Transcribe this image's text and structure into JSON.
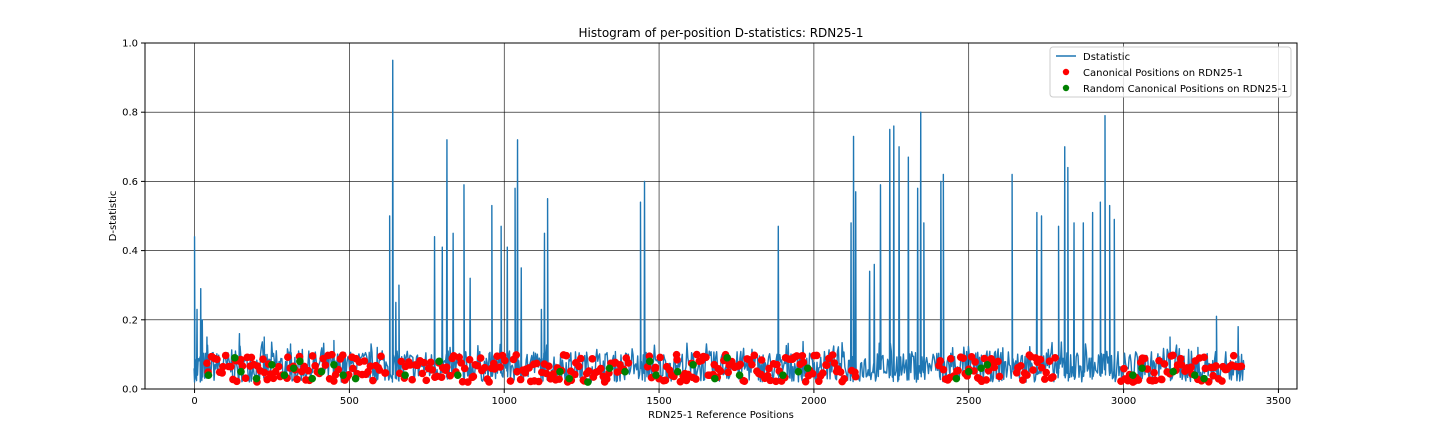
{
  "chart_data": {
    "type": "line",
    "title": "Histogram of per-position D-statistics: RDN25-1",
    "xlabel": "RDN25-1 Reference Positions",
    "ylabel": "D-statistic",
    "xlim": [
      -160,
      3560
    ],
    "ylim": [
      0,
      1.0
    ],
    "xticks": [
      0,
      500,
      1000,
      1500,
      2000,
      2500,
      3000,
      3500
    ],
    "yticks": [
      0.0,
      0.2,
      0.4,
      0.6,
      0.8,
      1.0
    ],
    "xtick_labels": [
      "0",
      "500",
      "1000",
      "1500",
      "2000",
      "2500",
      "3000",
      "3500"
    ],
    "ytick_labels": [
      "0.0",
      "0.2",
      "0.4",
      "0.6",
      "0.8",
      "1.0"
    ],
    "grid": true,
    "legend_position": "top-right",
    "line_color": "#1f77b4",
    "canonical_color": "#ff0000",
    "random_color": "#008000",
    "series": [
      {
        "name": "Dstatistic",
        "kind": "line",
        "x_start": 0,
        "x_end": 3390,
        "baseline_range": [
          0.02,
          0.11
        ],
        "peaks": [
          [
            0,
            0.44
          ],
          [
            8,
            0.23
          ],
          [
            20,
            0.29
          ],
          [
            25,
            0.2
          ],
          [
            40,
            0.15
          ],
          [
            145,
            0.16
          ],
          [
            225,
            0.15
          ],
          [
            310,
            0.13
          ],
          [
            450,
            0.14
          ],
          [
            590,
            0.12
          ],
          [
            630,
            0.5
          ],
          [
            640,
            0.95
          ],
          [
            650,
            0.25
          ],
          [
            660,
            0.3
          ],
          [
            775,
            0.44
          ],
          [
            800,
            0.41
          ],
          [
            815,
            0.72
          ],
          [
            835,
            0.45
          ],
          [
            870,
            0.59
          ],
          [
            890,
            0.32
          ],
          [
            960,
            0.53
          ],
          [
            990,
            0.47
          ],
          [
            1010,
            0.41
          ],
          [
            1035,
            0.58
          ],
          [
            1043,
            0.72
          ],
          [
            1055,
            0.35
          ],
          [
            1120,
            0.23
          ],
          [
            1130,
            0.45
          ],
          [
            1140,
            0.55
          ],
          [
            1440,
            0.54
          ],
          [
            1453,
            0.6
          ],
          [
            1885,
            0.47
          ],
          [
            2120,
            0.48
          ],
          [
            2128,
            0.73
          ],
          [
            2135,
            0.57
          ],
          [
            2180,
            0.34
          ],
          [
            2195,
            0.36
          ],
          [
            2215,
            0.59
          ],
          [
            2245,
            0.75
          ],
          [
            2258,
            0.76
          ],
          [
            2275,
            0.7
          ],
          [
            2305,
            0.67
          ],
          [
            2335,
            0.58
          ],
          [
            2345,
            0.8
          ],
          [
            2355,
            0.48
          ],
          [
            2410,
            0.6
          ],
          [
            2418,
            0.62
          ],
          [
            2640,
            0.62
          ],
          [
            2720,
            0.51
          ],
          [
            2735,
            0.5
          ],
          [
            2790,
            0.47
          ],
          [
            2810,
            0.7
          ],
          [
            2820,
            0.64
          ],
          [
            2840,
            0.48
          ],
          [
            2870,
            0.48
          ],
          [
            2900,
            0.51
          ],
          [
            2925,
            0.54
          ],
          [
            2940,
            0.79
          ],
          [
            2955,
            0.53
          ],
          [
            2970,
            0.49
          ],
          [
            3150,
            0.15
          ],
          [
            3240,
            0.12
          ],
          [
            3300,
            0.21
          ],
          [
            3370,
            0.18
          ]
        ]
      },
      {
        "name": "Canonical Positions on RDN25-1",
        "kind": "scatter",
        "x_ranges": [
          [
            35,
            620
          ],
          [
            660,
            1000
          ],
          [
            1020,
            1400
          ],
          [
            1460,
            2100
          ],
          [
            2120,
            2140
          ],
          [
            2400,
            2600
          ],
          [
            2650,
            2780
          ],
          [
            2990,
            3380
          ]
        ],
        "y_range": [
          0.02,
          0.1
        ]
      },
      {
        "name": "Random Canonical Positions on RDN25-1",
        "kind": "scatter",
        "x_values": [
          45,
          130,
          150,
          200,
          250,
          290,
          320,
          340,
          380,
          410,
          450,
          480,
          520,
          680,
          790,
          850,
          1180,
          1210,
          1270,
          1340,
          1390,
          1470,
          1490,
          1560,
          1610,
          1680,
          1720,
          1760,
          1900,
          1950,
          1980,
          2460,
          2500,
          2540,
          2560,
          3030,
          3060,
          3160,
          3230,
          3260
        ],
        "y_values": [
          0.04,
          0.09,
          0.05,
          0.03,
          0.07,
          0.04,
          0.06,
          0.08,
          0.03,
          0.05,
          0.07,
          0.04,
          0.03,
          0.04,
          0.08,
          0.04,
          0.05,
          0.03,
          0.02,
          0.06,
          0.05,
          0.08,
          0.04,
          0.05,
          0.07,
          0.03,
          0.09,
          0.04,
          0.04,
          0.05,
          0.06,
          0.03,
          0.05,
          0.06,
          0.07,
          0.04,
          0.06,
          0.05,
          0.04,
          0.03
        ]
      }
    ]
  }
}
